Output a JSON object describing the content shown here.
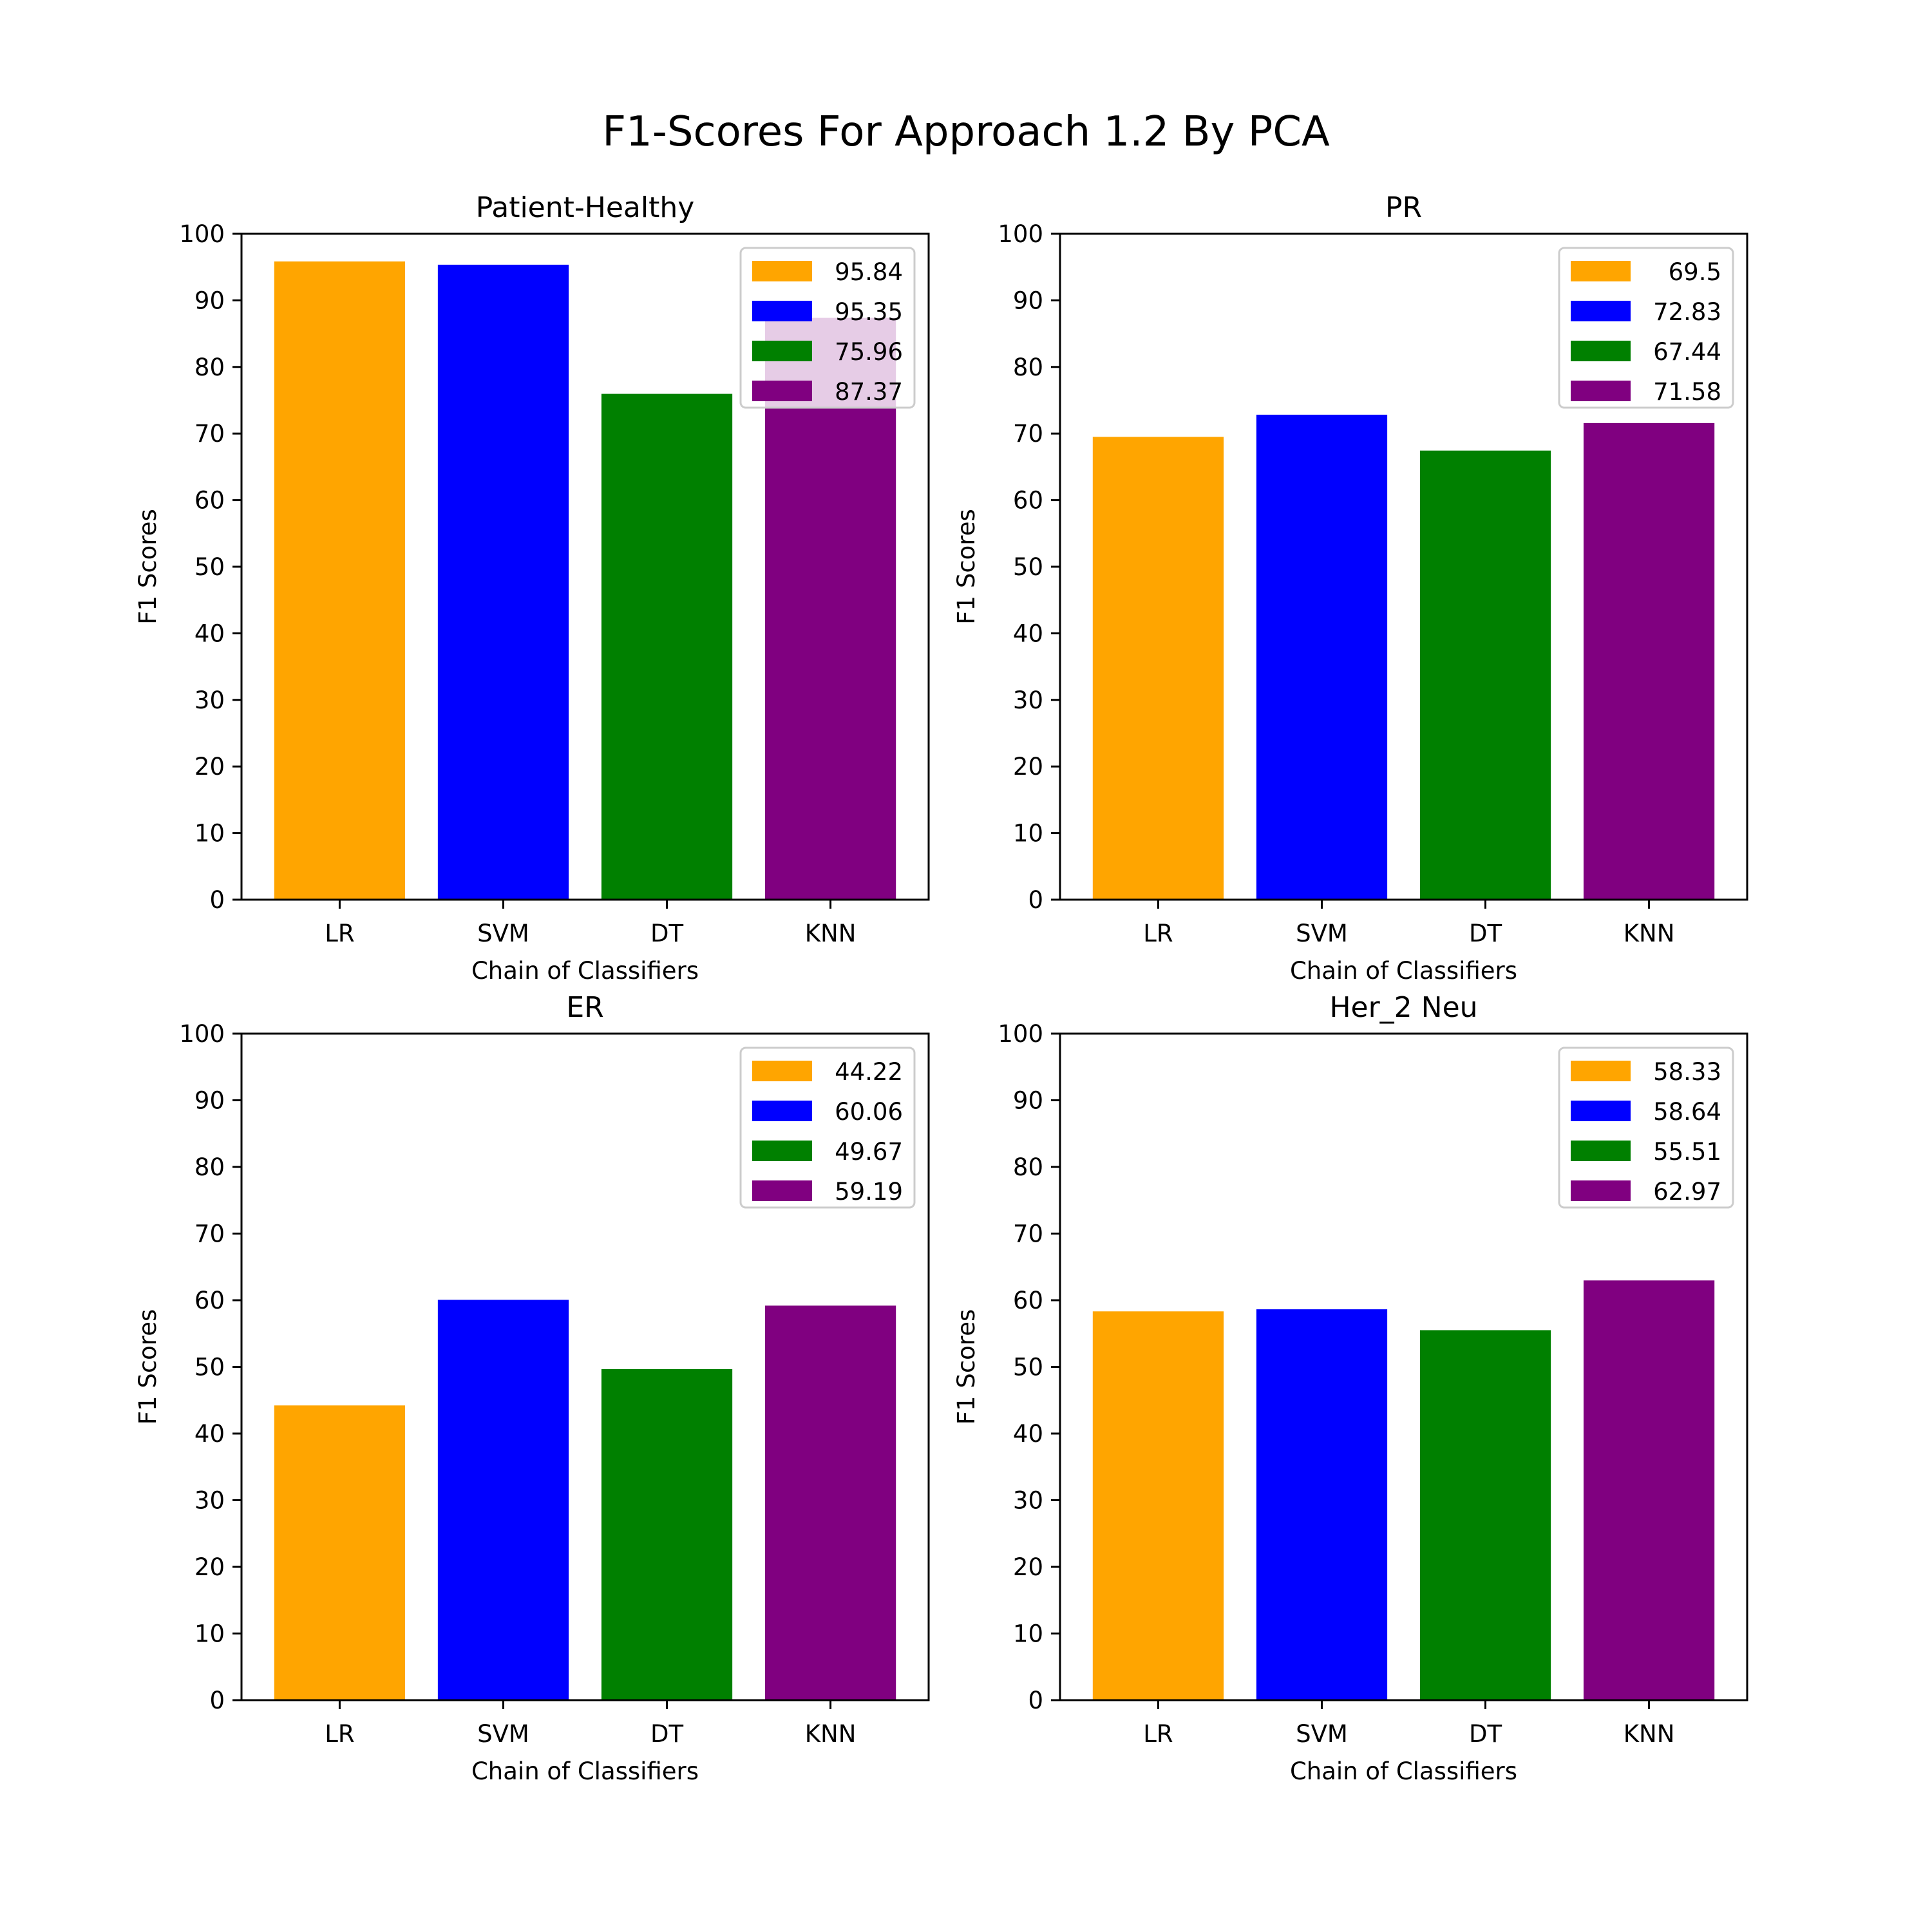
{
  "figure_title": "F1-Scores For Approach 1.2 By PCA",
  "chart_data": [
    {
      "type": "bar",
      "title": "Patient-Healthy",
      "xlabel": "Chain of Classifiers",
      "ylabel": "F1 Scores",
      "categories": [
        "LR",
        "SVM",
        "DT",
        "KNN"
      ],
      "values": [
        95.84,
        95.35,
        75.96,
        87.37
      ],
      "legend": [
        "95.84",
        "95.35",
        "75.96",
        "87.37"
      ],
      "legend_position": "upper-right",
      "ylim": [
        0,
        100
      ],
      "yticks": [
        "0",
        "10",
        "20",
        "30",
        "40",
        "50",
        "60",
        "70",
        "80",
        "90",
        "100"
      ],
      "colors": [
        "#ffa500",
        "#0000ff",
        "#008000",
        "#800080"
      ],
      "grid": false
    },
    {
      "type": "bar",
      "title": "PR",
      "xlabel": "Chain of Classifiers",
      "ylabel": "F1 Scores",
      "categories": [
        "LR",
        "SVM",
        "DT",
        "KNN"
      ],
      "values": [
        69.5,
        72.83,
        67.44,
        71.58
      ],
      "legend": [
        "69.5",
        "72.83",
        "67.44",
        "71.58"
      ],
      "legend_position": "upper-right",
      "ylim": [
        0,
        100
      ],
      "yticks": [
        "0",
        "10",
        "20",
        "30",
        "40",
        "50",
        "60",
        "70",
        "80",
        "90",
        "100"
      ],
      "colors": [
        "#ffa500",
        "#0000ff",
        "#008000",
        "#800080"
      ],
      "grid": false
    },
    {
      "type": "bar",
      "title": "ER",
      "xlabel": "Chain of Classifiers",
      "ylabel": "F1 Scores",
      "categories": [
        "LR",
        "SVM",
        "DT",
        "KNN"
      ],
      "values": [
        44.22,
        60.06,
        49.67,
        59.19
      ],
      "legend": [
        "44.22",
        "60.06",
        "49.67",
        "59.19"
      ],
      "legend_position": "upper-right",
      "ylim": [
        0,
        100
      ],
      "yticks": [
        "0",
        "10",
        "20",
        "30",
        "40",
        "50",
        "60",
        "70",
        "80",
        "90",
        "100"
      ],
      "colors": [
        "#ffa500",
        "#0000ff",
        "#008000",
        "#800080"
      ],
      "grid": false
    },
    {
      "type": "bar",
      "title": "Her_2 Neu",
      "xlabel": "Chain of Classifiers",
      "ylabel": "F1 Scores",
      "categories": [
        "LR",
        "SVM",
        "DT",
        "KNN"
      ],
      "values": [
        58.33,
        58.64,
        55.51,
        62.97
      ],
      "legend": [
        "58.33",
        "58.64",
        "55.51",
        "62.97"
      ],
      "legend_position": "upper-right",
      "ylim": [
        0,
        100
      ],
      "yticks": [
        "0",
        "10",
        "20",
        "30",
        "40",
        "50",
        "60",
        "70",
        "80",
        "90",
        "100"
      ],
      "colors": [
        "#ffa500",
        "#0000ff",
        "#008000",
        "#800080"
      ],
      "grid": false
    }
  ]
}
